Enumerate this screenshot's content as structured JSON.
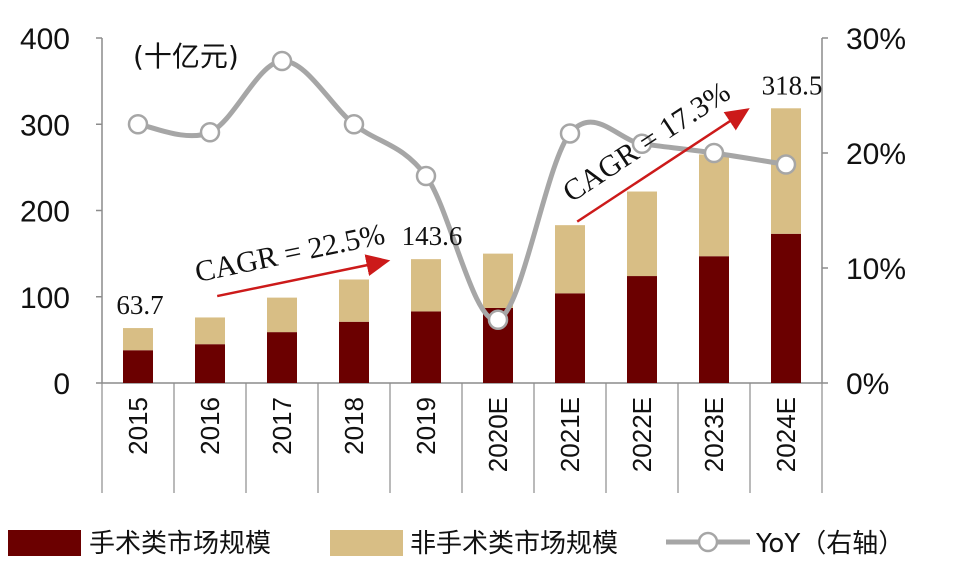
{
  "chart_data": {
    "type": "bar",
    "unit_label": "(十亿元)",
    "categories": [
      "2015",
      "2016",
      "2017",
      "2018",
      "2019",
      "2020E",
      "2021E",
      "2022E",
      "2023E",
      "2024E"
    ],
    "series": [
      {
        "name": "手术类市场规模",
        "type": "bar",
        "axis": "left",
        "color": "#6b0000",
        "values": [
          38,
          45,
          59,
          71,
          83,
          87,
          104,
          124,
          147,
          173
        ]
      },
      {
        "name": "非手术类市场规模",
        "type": "bar",
        "axis": "left",
        "color": "#d8be85",
        "values": [
          25.7,
          31,
          40,
          49,
          60.6,
          63,
          79,
          98,
          118,
          145.5
        ]
      },
      {
        "name": "YoY（右轴）",
        "type": "line",
        "axis": "right",
        "color": "#a6a6a6",
        "values": [
          0.225,
          0.218,
          0.28,
          0.225,
          0.18,
          0.055,
          0.217,
          0.208,
          0.2,
          0.19
        ]
      }
    ],
    "y_left": {
      "min": 0,
      "max": 400,
      "ticks": [
        "0",
        "100",
        "200",
        "300",
        "400"
      ]
    },
    "y_right": {
      "min": 0,
      "max": 0.3,
      "ticks": [
        "0%",
        "10%",
        "20%",
        "30%"
      ]
    },
    "data_labels": [
      {
        "category": "2015",
        "text": "63.7"
      },
      {
        "category": "2019",
        "text": "143.6"
      },
      {
        "category": "2024E",
        "text": "318.5"
      }
    ],
    "annotations": [
      {
        "text": "CAGR = 22.5%",
        "from": "2015",
        "to": "2019"
      },
      {
        "text": "CAGR = 17.3%",
        "from": "2020E",
        "to": "2024E"
      }
    ],
    "legend_position": "bottom",
    "grid": false
  }
}
